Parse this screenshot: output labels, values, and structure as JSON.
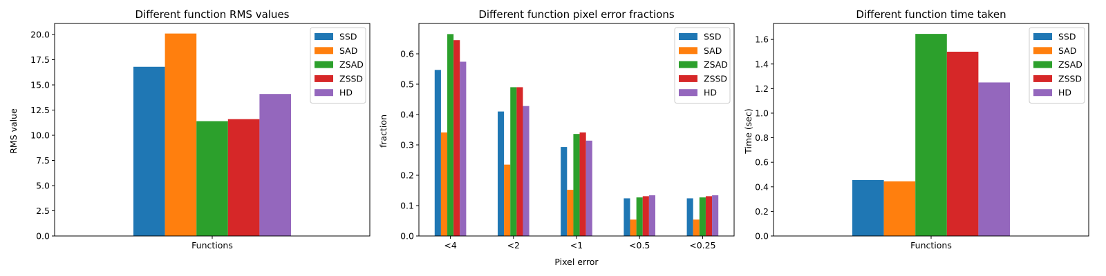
{
  "chart_data": [
    {
      "type": "bar",
      "title": "Different function RMS values",
      "xlabel": "",
      "ylabel": "RMS value",
      "categories": [
        "Functions"
      ],
      "ylim": [
        0,
        21.1
      ],
      "yticks": [
        0.0,
        2.5,
        5.0,
        7.5,
        10.0,
        12.5,
        15.0,
        17.5,
        20.0
      ],
      "ytick_decimals": 1,
      "legend": "top-right",
      "grid": false,
      "series": [
        {
          "name": "SSD",
          "values": [
            16.8
          ]
        },
        {
          "name": "SAD",
          "values": [
            20.1
          ]
        },
        {
          "name": "ZSAD",
          "values": [
            11.4
          ]
        },
        {
          "name": "ZSSD",
          "values": [
            11.6
          ]
        },
        {
          "name": "HD",
          "values": [
            14.1
          ]
        }
      ]
    },
    {
      "type": "bar",
      "title": "Different function pixel error fractions",
      "xlabel": "Pixel error",
      "ylabel": "fraction",
      "categories": [
        "<4",
        "<2",
        "<1",
        "<0.5",
        "<0.25"
      ],
      "ylim": [
        0,
        0.7
      ],
      "yticks": [
        0.0,
        0.1,
        0.2,
        0.3,
        0.4,
        0.5,
        0.6
      ],
      "ytick_decimals": 1,
      "legend": "top-right",
      "grid": false,
      "series": [
        {
          "name": "SSD",
          "values": [
            0.547,
            0.41,
            0.293,
            0.124,
            0.124
          ]
        },
        {
          "name": "SAD",
          "values": [
            0.341,
            0.235,
            0.152,
            0.054,
            0.054
          ]
        },
        {
          "name": "ZSAD",
          "values": [
            0.665,
            0.49,
            0.336,
            0.127,
            0.127
          ]
        },
        {
          "name": "ZSSD",
          "values": [
            0.645,
            0.49,
            0.341,
            0.131,
            0.131
          ]
        },
        {
          "name": "HD",
          "values": [
            0.574,
            0.428,
            0.314,
            0.134,
            0.134
          ]
        }
      ]
    },
    {
      "type": "bar",
      "title": "Different function time taken",
      "xlabel": "",
      "ylabel": "Time (sec)",
      "categories": [
        "Functions"
      ],
      "ylim": [
        0,
        1.73
      ],
      "yticks": [
        0.0,
        0.2,
        0.4,
        0.6,
        0.8,
        1.0,
        1.2,
        1.4,
        1.6
      ],
      "ytick_decimals": 1,
      "legend": "top-right",
      "grid": false,
      "series": [
        {
          "name": "SSD",
          "values": [
            0.455
          ]
        },
        {
          "name": "SAD",
          "values": [
            0.445
          ]
        },
        {
          "name": "ZSAD",
          "values": [
            1.645
          ]
        },
        {
          "name": "ZSSD",
          "values": [
            1.5
          ]
        },
        {
          "name": "HD",
          "values": [
            1.25
          ]
        }
      ]
    }
  ],
  "colors": {
    "SSD": "#1f77b4",
    "SAD": "#ff7f0e",
    "ZSAD": "#2ca02c",
    "ZSSD": "#d62728",
    "HD": "#9467bd"
  }
}
